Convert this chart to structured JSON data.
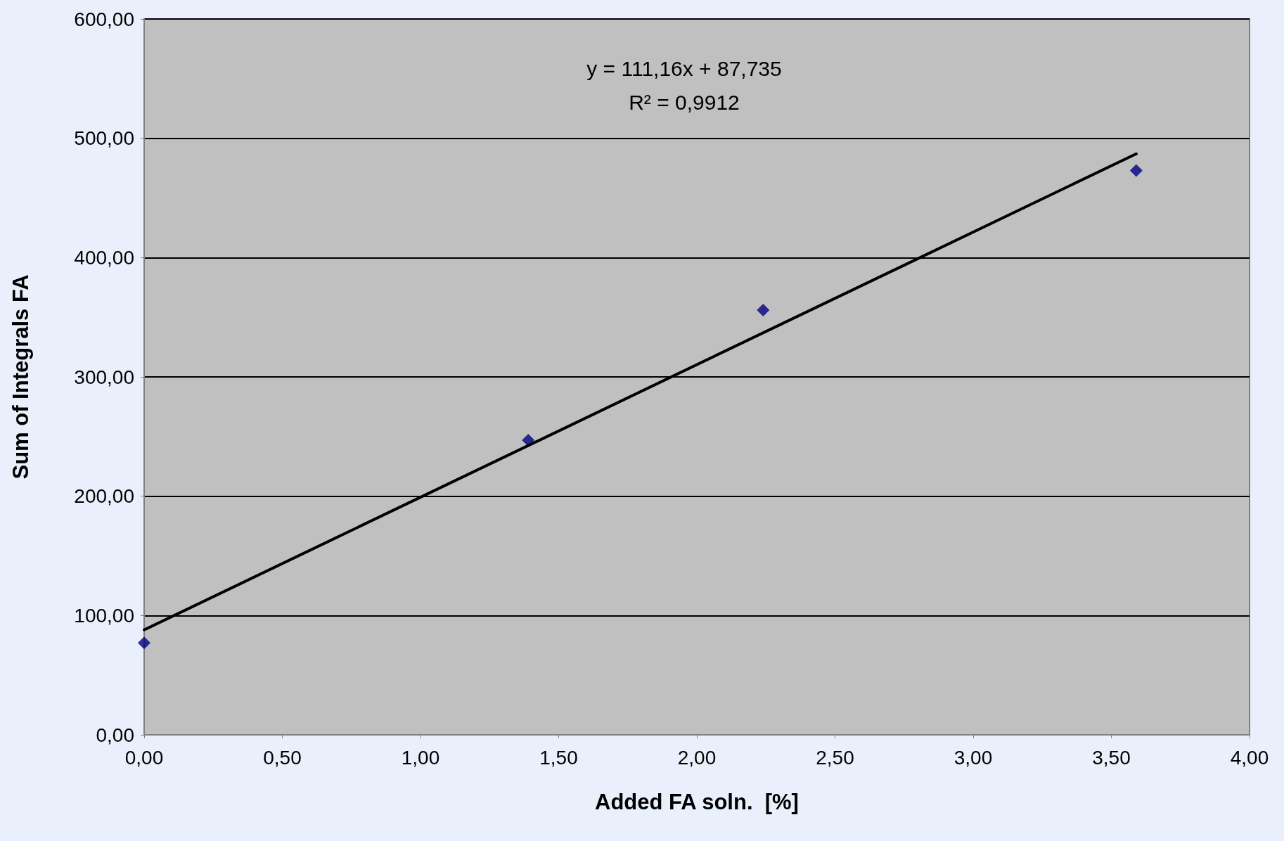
{
  "chart_data": {
    "type": "scatter",
    "xlabel": "Added FA soln.  [%]",
    "ylabel": "Sum of Integrals FA",
    "annotations": [
      "y = 111,16x + 87,735",
      "R² = 0,9912"
    ],
    "series": [
      {
        "color": "#000080",
        "marker": "diamond",
        "x": [
          0,
          1.39,
          2.24,
          3.59
        ],
        "values": [
          77,
          247,
          356,
          473
        ]
      },
      {
        "type": "line",
        "color": "#000000",
        "marker": "none",
        "line_style": "solid",
        "x": [
          0,
          3.59
        ],
        "values": [
          88,
          487
        ]
      }
    ],
    "xlim": [
      0,
      4
    ],
    "ylim": [
      0,
      600
    ],
    "xticks": [
      {
        "value": 0,
        "label": "0,00"
      },
      {
        "value": 0.5,
        "label": "0,50"
      },
      {
        "value": 1,
        "label": "1,00"
      },
      {
        "value": 1.5,
        "label": "1,50"
      },
      {
        "value": 2,
        "label": "2,00"
      },
      {
        "value": 2.5,
        "label": "2,50"
      },
      {
        "value": 3,
        "label": "3,00"
      },
      {
        "value": 3.5,
        "label": "3,50"
      },
      {
        "value": 4,
        "label": "4,00"
      }
    ],
    "yticks": [
      {
        "value": 0,
        "label": "0,00"
      },
      {
        "value": 100,
        "label": "100,00"
      },
      {
        "value": 200,
        "label": "200,00"
      },
      {
        "value": 300,
        "label": "300,00"
      },
      {
        "value": 400,
        "label": "400,00"
      },
      {
        "value": 500,
        "label": "500,00"
      },
      {
        "value": 600,
        "label": "600,00"
      }
    ],
    "grid": "y"
  }
}
